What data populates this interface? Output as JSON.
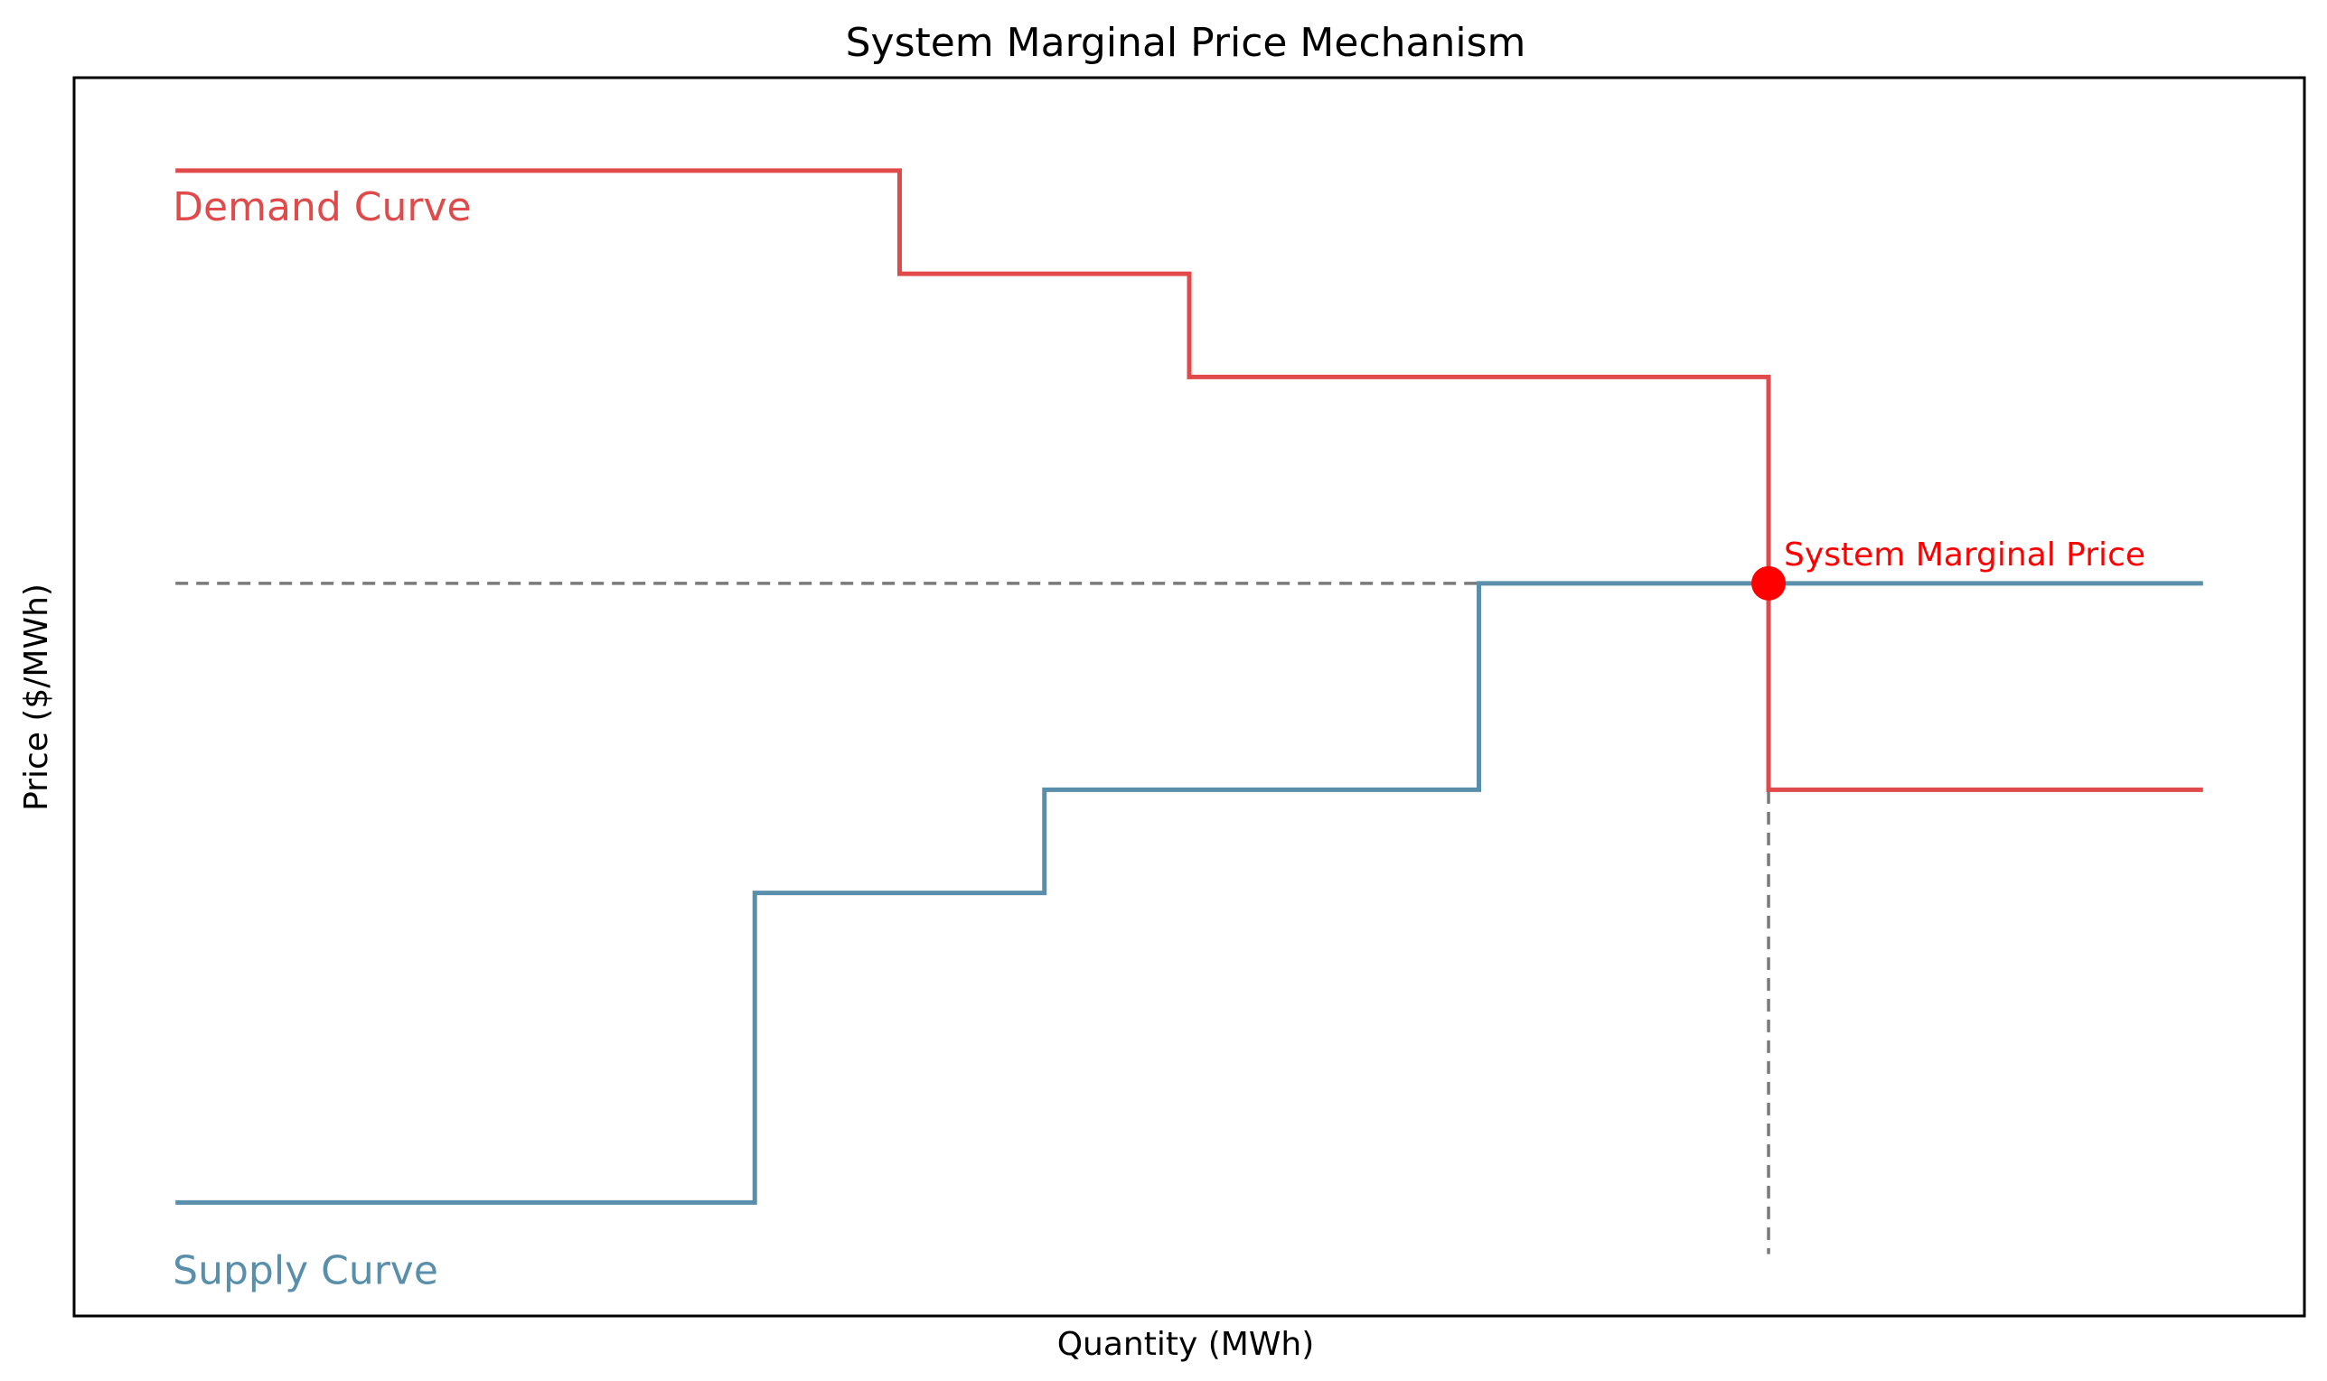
{
  "chart_data": {
    "type": "line",
    "title": "System Marginal Price Mechanism",
    "xlabel": "Quantity (MWh)",
    "ylabel": "Price ($/MWh)",
    "xlim": [
      -0.35,
      7.35
    ],
    "ylim": [
      -0.55,
      5.45
    ],
    "grid": false,
    "legend": "none",
    "colors": {
      "demand": "#e04a4a",
      "supply": "#5a8fab",
      "marker": "#ff0000",
      "guide": "#7a7a7a"
    },
    "series": [
      {
        "name": "Demand Curve",
        "step": "post",
        "x": [
          0,
          2.5,
          3.5,
          5.5,
          7
        ],
        "y": [
          5,
          4.5,
          4,
          2,
          2
        ]
      },
      {
        "name": "Supply Curve",
        "step": "post",
        "x": [
          0,
          2,
          3,
          4.5,
          7
        ],
        "y": [
          0,
          1.5,
          2,
          3,
          3
        ]
      }
    ],
    "annotations": [
      {
        "text": "System Marginal Price",
        "x": 5.5,
        "y": 3
      }
    ],
    "guides": {
      "price": 3,
      "quantity": 5.5
    }
  }
}
